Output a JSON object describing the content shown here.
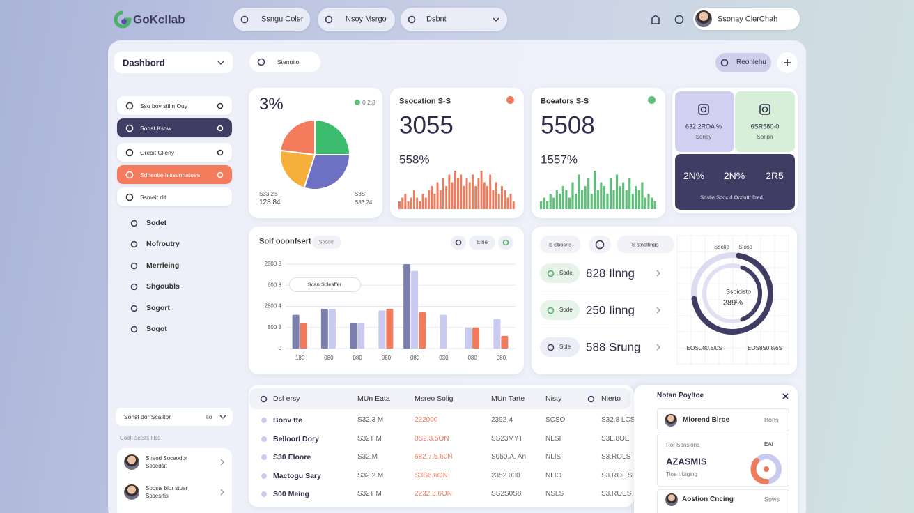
{
  "header": {
    "logo": "GoKcllab",
    "pills": [
      "Ssngu Coler",
      "Nsoy Msrgo"
    ],
    "dropdown": "Dsbnt",
    "user": "Ssonay ClerChah"
  },
  "sidebar": {
    "dropdown": "Dashbord",
    "cards": [
      "Sso bov stiiin Ouy",
      "Sonst Ksow",
      "Oreoit Clieny",
      "Sdhentie hissonnatoes",
      "Ssmeit dit"
    ],
    "menu": [
      "Sodet",
      "Nofroutry",
      "Merrleing",
      "Shgoubls",
      "Sogort",
      "Sogot"
    ],
    "select": {
      "label": "Sonst dor Scalltor",
      "value": "lio"
    },
    "caption": "Coolt aetsts ltlss",
    "people": [
      {
        "name": "Sneod Soceodor",
        "role": "Sosedsit"
      },
      {
        "name": "Soosts blor stuer",
        "role": "Sosesrtis"
      }
    ]
  },
  "toolbar": {
    "search": "Stenuito",
    "button": "Reonlehu"
  },
  "stat_cards": [
    {
      "title": "3%",
      "badge": "0 2.8",
      "left": [
        "S33 2ls",
        "128.84"
      ],
      "right": [
        "S3S",
        "S83 24"
      ],
      "pie": {
        "type": "pie",
        "values": [
          25,
          30,
          22,
          23
        ],
        "colors": [
          "#3dbb6f",
          "#6e70c4",
          "#f5b03c",
          "#f47c5c"
        ]
      }
    },
    {
      "title": "Ssocation S-S",
      "value": "3055",
      "change": "558%",
      "color": "#f07a5c",
      "bars": [
        2,
        3,
        4,
        2,
        3,
        5,
        3,
        2,
        4,
        3,
        5,
        6,
        4,
        7,
        5,
        8,
        6,
        9,
        7,
        10,
        8,
        9,
        6,
        8,
        7,
        9,
        6,
        8,
        10,
        7,
        6,
        9,
        5,
        7,
        4,
        6,
        5,
        3,
        4,
        2
      ]
    },
    {
      "title": "Boeators S-S",
      "value": "5508",
      "change": "1557%",
      "color": "#5fbf78",
      "bars": [
        2,
        3,
        2,
        4,
        3,
        5,
        4,
        6,
        5,
        3,
        7,
        4,
        9,
        5,
        6,
        8,
        4,
        10,
        5,
        7,
        6,
        4,
        8,
        5,
        9,
        6,
        7,
        5,
        8,
        4,
        6,
        5,
        7,
        3,
        4,
        3,
        2
      ]
    }
  ],
  "tiles": {
    "a": {
      "value": "632 2ROA %",
      "label": "Sonpy"
    },
    "b": {
      "value": "6SR580-0",
      "label": "Sonpn"
    },
    "stats": [
      "2N%",
      "2N%",
      "2R5"
    ],
    "note": "Sostie Sooc d Oconttr ltred"
  },
  "bar_chart": {
    "type": "bar",
    "title": "Soif ooonfsert",
    "chip": "Sboom",
    "filter": "Elrie",
    "tooltip": "Scan Scleaffer",
    "categories": [
      "180",
      "080",
      "080",
      "080",
      "080",
      "030",
      "080",
      "080"
    ],
    "series": [
      {
        "color": "#7b7fae",
        "values": [
          40,
          47,
          30,
          null,
          100,
          null,
          null,
          null
        ]
      },
      {
        "color": "#c9caf0",
        "values": [
          null,
          47,
          30,
          45,
          92,
          40,
          25,
          35
        ]
      },
      {
        "color": "#f07a5c",
        "values": [
          30,
          null,
          null,
          47,
          43,
          null,
          25,
          15
        ]
      }
    ],
    "ylim": [
      0,
      100
    ],
    "yticks": [
      0,
      {
        "value": 25,
        "label": "800 8"
      },
      {
        "value": 50,
        "label": "2800 4"
      },
      {
        "value": 75,
        "label": "600 8"
      },
      {
        "value": 100,
        "label": "2800 8"
      }
    ],
    "grid": true
  },
  "metrics": {
    "chips": [
      "S Sbocns",
      "S stnollings"
    ],
    "rows": [
      {
        "tag": "Sode",
        "value": "828 Ilnng"
      },
      {
        "tag": "Sode",
        "value": "250 Iinng"
      },
      {
        "tag": "Sble",
        "value": "588 Srung"
      }
    ],
    "gauge": {
      "title": [
        "Ssolie",
        "Sloss"
      ],
      "label": "Ssoicisto",
      "value": "289%",
      "left": "EOSO80.8/0S",
      "right": "EOS8S0.8/6S"
    }
  },
  "table": {
    "columns": [
      "Dsf ersy",
      "MUn Eata",
      "Msreo Solig",
      "MUn Tarte",
      "Nisty",
      "Nierto"
    ],
    "rows": [
      [
        "Bonv tte",
        "S32.3 M",
        "222000",
        "2392·4",
        "SCSO",
        "S32.8 LCS"
      ],
      [
        "Belloorl Dory",
        "S32T M",
        "0S2.3.5ON",
        "SS23MYT",
        "NLSI",
        "S3L.8OE"
      ],
      [
        "S30 Eloore",
        "S32.M",
        "682.7.5.60N",
        "S050.A. An",
        "NLIS",
        "S3.ROLS"
      ],
      [
        "Mactogu Sary",
        "S32.2 M",
        "S3S6.6ON",
        "2352.000",
        "NLIO",
        "S3.ROL S"
      ],
      [
        "S00 Meing",
        "S32T M",
        "2232.3.6ON",
        "SS2S0S8",
        "NSLS",
        "S3.ROES"
      ]
    ]
  },
  "panel": {
    "title": "Notan Poyltoe",
    "first": {
      "name": "Mlorend Blroe",
      "meta": "Bons"
    },
    "feature": {
      "caption": "Ror Sonsiona",
      "badge": "EAI",
      "value": "AZASMIS",
      "note": "Tloe I Uiging"
    },
    "last": {
      "name": "Aostion Cncing",
      "meta": "Sows"
    }
  }
}
